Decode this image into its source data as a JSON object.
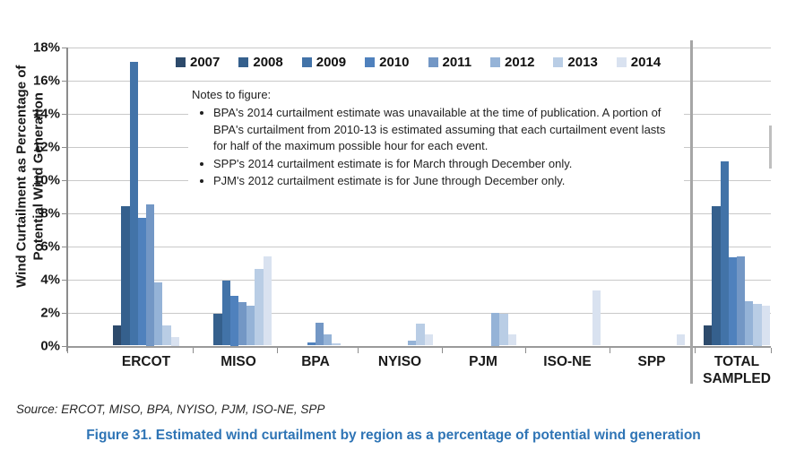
{
  "figure": {
    "caption": "Figure 31. Estimated wind curtailment by region as a percentage of potential wind generation",
    "caption_color": "#2E74B5",
    "source_line": "Source:  ERCOT, MISO, BPA, NYISO, PJM, ISO-NE, SPP"
  },
  "axis": {
    "y_title_line1": "Wind Curtailment as Percentage of",
    "y_title_line2": "Potential Wind Generation",
    "y_tick_labels": [
      "0%",
      "2%",
      "4%",
      "6%",
      "8%",
      "10%",
      "12%",
      "14%",
      "16%",
      "18%"
    ]
  },
  "notes": {
    "title": "Notes to figure:",
    "bullets": [
      "BPA's 2014 curtailment estimate was unavailable at the time of publication. A portion of BPA's curtailment from 2010-13 is estimated assuming that each curtailment event lasts for half of the maximum possible hour for each event.",
      "SPP's 2014 curtailment estimate is for March through December only.",
      "PJM's 2012 curtailment estimate is for June through December only."
    ]
  },
  "chart_data": {
    "type": "bar",
    "title": "",
    "xlabel": "",
    "ylabel": "Wind Curtailment as Percentage of Potential Wind Generation",
    "ylim": [
      0,
      18
    ],
    "ytick_step_pct": 2,
    "grid": "horizontal",
    "legend_position": "top-inside",
    "units": "percent",
    "categories": [
      "ERCOT",
      "MISO",
      "BPA",
      "NYISO",
      "PJM",
      "ISO-NE",
      "SPP",
      "TOTAL SAMPLED"
    ],
    "separator_before_category": "TOTAL SAMPLED",
    "series": [
      {
        "name": "2007",
        "color": "#2D4A6B",
        "values": [
          1.2,
          null,
          null,
          null,
          null,
          null,
          null,
          1.2
        ]
      },
      {
        "name": "2008",
        "color": "#35608D",
        "values": [
          8.4,
          1.9,
          null,
          null,
          null,
          null,
          null,
          8.4
        ]
      },
      {
        "name": "2009",
        "color": "#4273A8",
        "values": [
          17.1,
          3.9,
          null,
          null,
          null,
          null,
          null,
          11.1
        ]
      },
      {
        "name": "2010",
        "color": "#4F81BD",
        "values": [
          7.7,
          3.0,
          0.2,
          null,
          null,
          null,
          null,
          5.3
        ]
      },
      {
        "name": "2011",
        "color": "#7397C5",
        "values": [
          8.5,
          2.6,
          1.4,
          null,
          null,
          null,
          null,
          5.4
        ]
      },
      {
        "name": "2012",
        "color": "#95B3D7",
        "values": [
          3.8,
          2.4,
          0.7,
          0.3,
          2.0,
          null,
          null,
          2.7
        ]
      },
      {
        "name": "2013",
        "color": "#B9CDE5",
        "values": [
          1.2,
          4.6,
          0.15,
          1.3,
          1.9,
          null,
          null,
          2.5
        ]
      },
      {
        "name": "2014",
        "color": "#D9E2F0",
        "values": [
          0.5,
          5.4,
          null,
          0.7,
          0.7,
          3.3,
          0.7,
          2.4
        ]
      }
    ]
  }
}
